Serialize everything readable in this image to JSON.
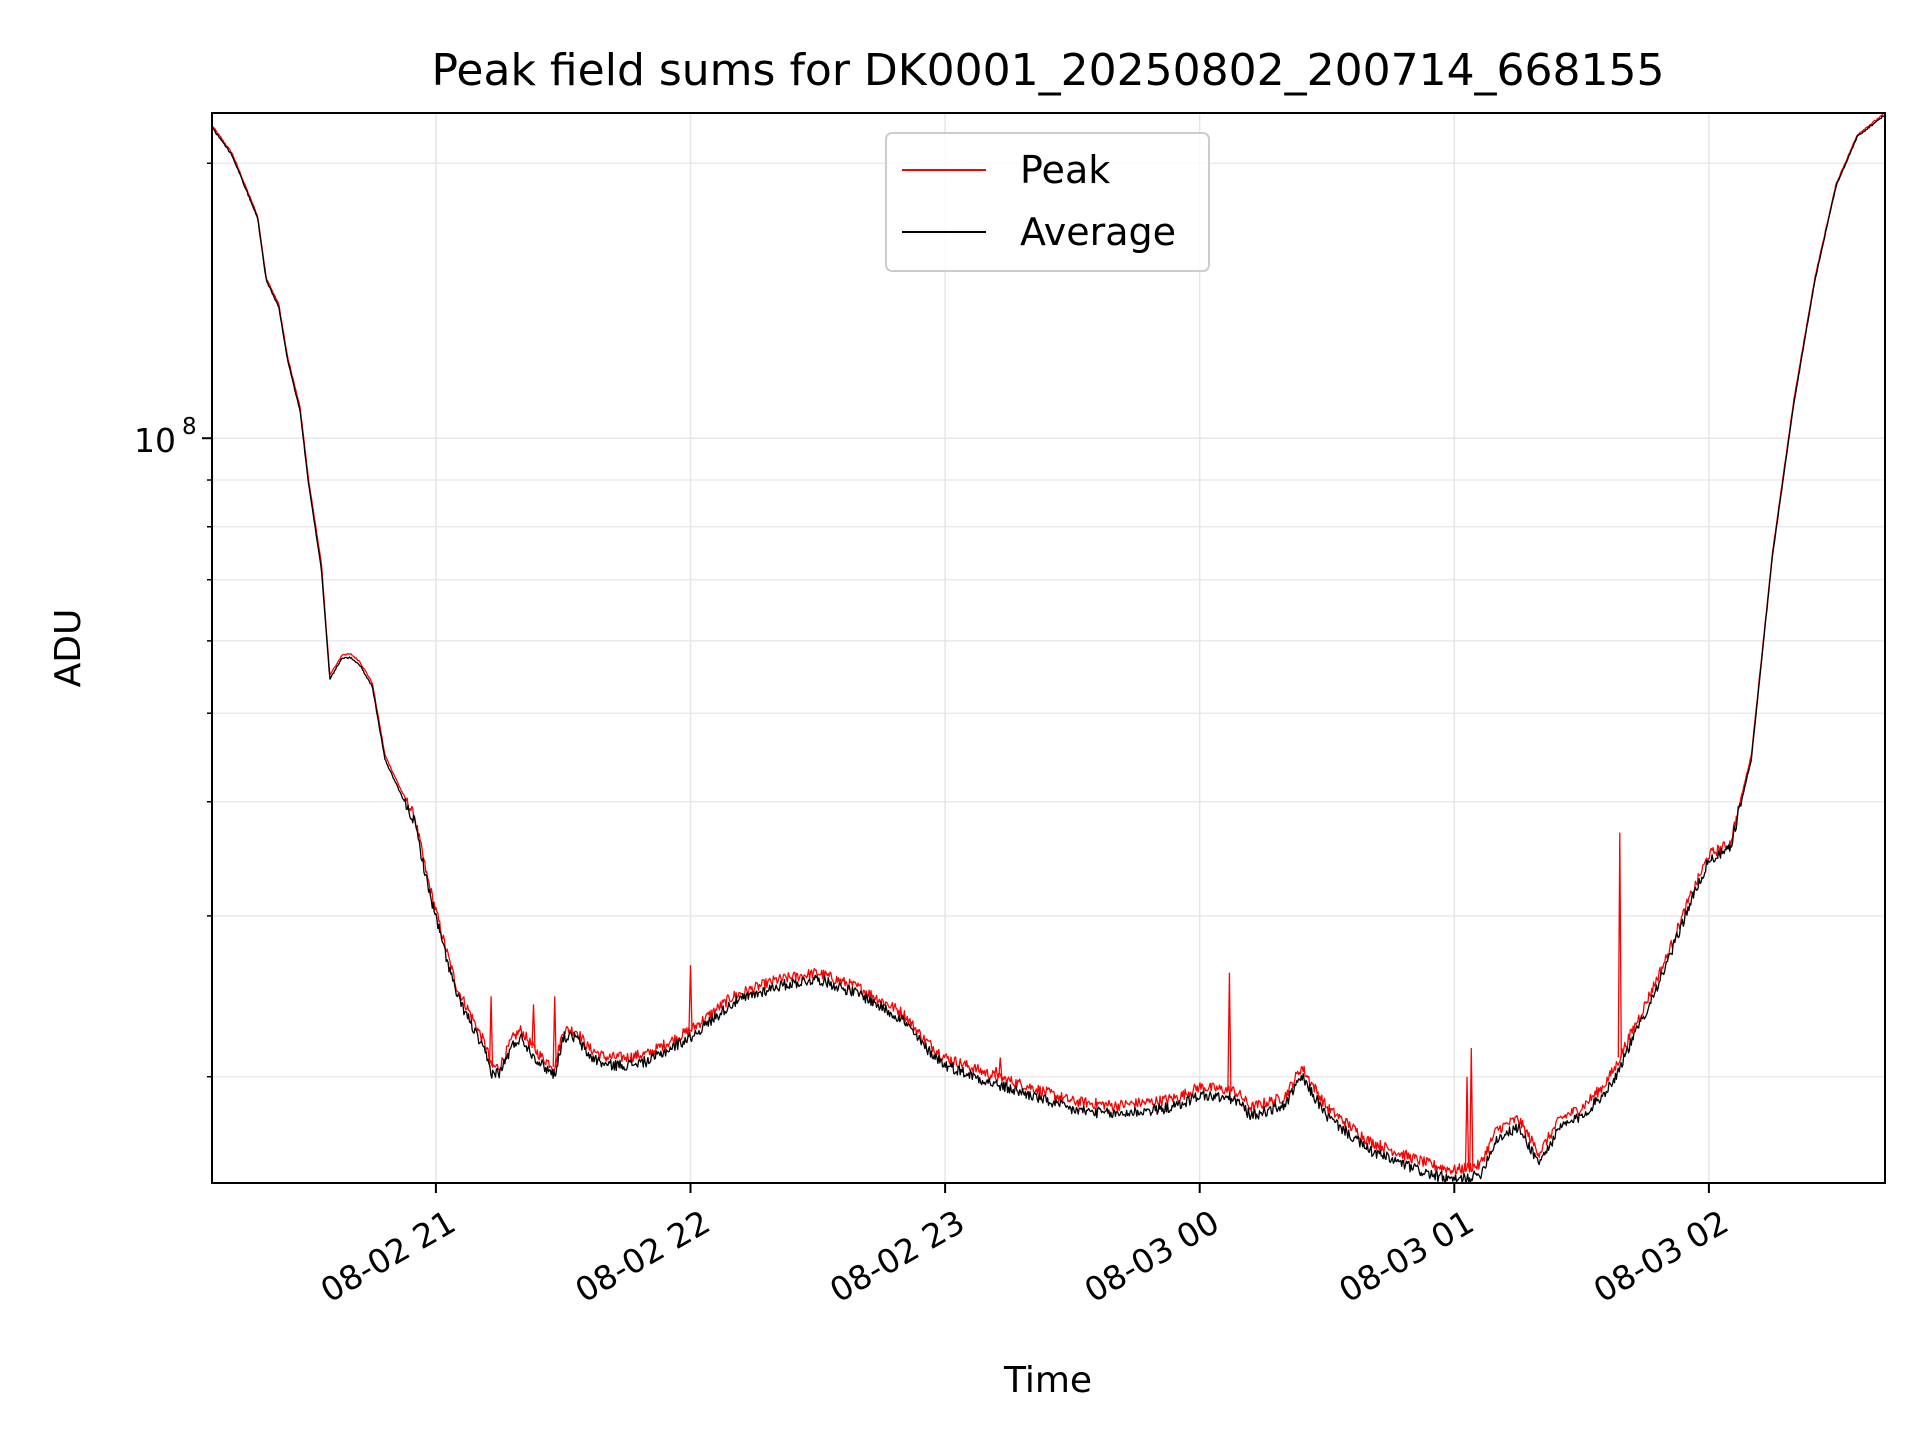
{
  "chart_data": {
    "type": "line",
    "title": "Peak field sums for DK0001_20250802_200714_668155",
    "xlabel": "Time",
    "ylabel": "ADU",
    "yscale": "log",
    "ylim": [
      15300000,
      227000000
    ],
    "xlim": [
      "2025-08-02 20:07:14",
      "2025-08-03 02:41:30"
    ],
    "x_ticks": [
      "2025-08-02 21:00",
      "2025-08-02 22:00",
      "2025-08-02 23:00",
      "2025-08-03 00:00",
      "2025-08-03 01:00",
      "2025-08-03 02:00"
    ],
    "x_tick_labels": [
      "08-02 21",
      "08-02 22",
      "08-02 23",
      "08-03 00",
      "08-03 01",
      "08-03 02"
    ],
    "y_tick_label_main": "10",
    "y_tick_label_exp": "8",
    "y_minor_ticks": [
      20000000,
      30000000,
      40000000,
      50000000,
      60000000,
      70000000,
      80000000,
      90000000,
      200000000
    ],
    "grid": true,
    "legend_position": "top-center",
    "colors": {
      "peak": "#ff0000",
      "average": "#000000",
      "grid": "#e6e6e6"
    },
    "series": [
      {
        "name": "Peak",
        "x": [
          "2025-08-02 20:07:14",
          "2025-08-02 20:12",
          "2025-08-02 20:18",
          "2025-08-02 20:20",
          "2025-08-02 20:23",
          "2025-08-02 20:25",
          "2025-08-02 20:28",
          "2025-08-02 20:30",
          "2025-08-02 20:33",
          "2025-08-02 20:35",
          "2025-08-02 20:38",
          "2025-08-02 20:40",
          "2025-08-02 20:42",
          "2025-08-02 20:45",
          "2025-08-02 20:48",
          "2025-08-02 20:52",
          "2025-08-02 20:55",
          "2025-08-02 20:58",
          "2025-08-02 21:02",
          "2025-08-02 21:05",
          "2025-08-02 21:08",
          "2025-08-02 21:12",
          "2025-08-02 21:13",
          "2025-08-02 21:15",
          "2025-08-02 21:18",
          "2025-08-02 21:20",
          "2025-08-02 21:23",
          "2025-08-02 21:25",
          "2025-08-02 21:28",
          "2025-08-02 21:30",
          "2025-08-02 21:33",
          "2025-08-02 21:36",
          "2025-08-02 21:40",
          "2025-08-02 21:45",
          "2025-08-02 21:50",
          "2025-08-02 22:00",
          "2025-08-02 22:10",
          "2025-08-02 22:20",
          "2025-08-02 22:30",
          "2025-08-02 22:40",
          "2025-08-02 22:50",
          "2025-08-02 22:55",
          "2025-08-02 23:00",
          "2025-08-02 23:12",
          "2025-08-02 23:20",
          "2025-08-02 23:30",
          "2025-08-02 23:40",
          "2025-08-02 23:50",
          "2025-08-02 23:55",
          "2025-08-03 00:00",
          "2025-08-03 00:08",
          "2025-08-03 00:10",
          "2025-08-03 00:12",
          "2025-08-03 00:15",
          "2025-08-03 00:20",
          "2025-08-03 00:24",
          "2025-08-03 00:30",
          "2025-08-03 00:40",
          "2025-08-03 00:50",
          "2025-08-03 00:55",
          "2025-08-03 01:00",
          "2025-08-03 01:03",
          "2025-08-03 01:06",
          "2025-08-03 01:10",
          "2025-08-03 01:15",
          "2025-08-03 01:20",
          "2025-08-03 01:25",
          "2025-08-03 01:30",
          "2025-08-03 01:35",
          "2025-08-03 01:38",
          "2025-08-03 01:40",
          "2025-08-03 01:45",
          "2025-08-03 01:50",
          "2025-08-03 01:55",
          "2025-08-03 02:00",
          "2025-08-03 02:05",
          "2025-08-03 02:10",
          "2025-08-03 02:15",
          "2025-08-03 02:20",
          "2025-08-03 02:25",
          "2025-08-03 02:30",
          "2025-08-03 02:35",
          "2025-08-03 02:41:30"
        ],
        "y": [
          220000000,
          205000000,
          175000000,
          150000000,
          140000000,
          123000000,
          108000000,
          90000000,
          73000000,
          55000000,
          58000000,
          58000000,
          57000000,
          54000000,
          45000000,
          41000000,
          38500000,
          33000000,
          28000000,
          25000000,
          23500000,
          21500000,
          20500000,
          20500000,
          22000000,
          22500000,
          21500000,
          21000000,
          20500000,
          22500000,
          22500000,
          21500000,
          21000000,
          21000000,
          21200000,
          22500000,
          24500000,
          25500000,
          26000000,
          25000000,
          23500000,
          22000000,
          21000000,
          20000000,
          19500000,
          18800000,
          18600000,
          18800000,
          19000000,
          19500000,
          19300000,
          19000000,
          18500000,
          18700000,
          19000000,
          20500000,
          18500000,
          17000000,
          16300000,
          16000000,
          15800000,
          15900000,
          16000000,
          17500000,
          18000000,
          16500000,
          18000000,
          18500000,
          19500000,
          20500000,
          21500000,
          24000000,
          27000000,
          31000000,
          35000000,
          36000000,
          45000000,
          75000000,
          110000000,
          150000000,
          190000000,
          215000000,
          227000000
        ]
      },
      {
        "name": "Average",
        "x": [
          "2025-08-02 20:07:14",
          "2025-08-02 20:12",
          "2025-08-02 20:18",
          "2025-08-02 20:20",
          "2025-08-02 20:23",
          "2025-08-02 20:25",
          "2025-08-02 20:28",
          "2025-08-02 20:30",
          "2025-08-02 20:33",
          "2025-08-02 20:35",
          "2025-08-02 20:38",
          "2025-08-02 20:40",
          "2025-08-02 20:42",
          "2025-08-02 20:45",
          "2025-08-02 20:48",
          "2025-08-02 20:52",
          "2025-08-02 20:55",
          "2025-08-02 20:58",
          "2025-08-02 21:02",
          "2025-08-02 21:05",
          "2025-08-02 21:08",
          "2025-08-02 21:12",
          "2025-08-02 21:13",
          "2025-08-02 21:15",
          "2025-08-02 21:18",
          "2025-08-02 21:20",
          "2025-08-02 21:23",
          "2025-08-02 21:25",
          "2025-08-02 21:28",
          "2025-08-02 21:30",
          "2025-08-02 21:33",
          "2025-08-02 21:36",
          "2025-08-02 21:40",
          "2025-08-02 21:45",
          "2025-08-02 21:50",
          "2025-08-02 22:00",
          "2025-08-02 22:10",
          "2025-08-02 22:20",
          "2025-08-02 22:30",
          "2025-08-02 22:40",
          "2025-08-02 22:50",
          "2025-08-02 22:55",
          "2025-08-02 23:00",
          "2025-08-02 23:12",
          "2025-08-02 23:20",
          "2025-08-02 23:30",
          "2025-08-02 23:40",
          "2025-08-02 23:50",
          "2025-08-02 23:55",
          "2025-08-03 00:00",
          "2025-08-03 00:08",
          "2025-08-03 00:10",
          "2025-08-03 00:12",
          "2025-08-03 00:15",
          "2025-08-03 00:20",
          "2025-08-03 00:24",
          "2025-08-03 00:30",
          "2025-08-03 00:40",
          "2025-08-03 00:50",
          "2025-08-03 00:55",
          "2025-08-03 01:00",
          "2025-08-03 01:03",
          "2025-08-03 01:06",
          "2025-08-03 01:10",
          "2025-08-03 01:15",
          "2025-08-03 01:20",
          "2025-08-03 01:25",
          "2025-08-03 01:30",
          "2025-08-03 01:35",
          "2025-08-03 01:38",
          "2025-08-03 01:40",
          "2025-08-03 01:45",
          "2025-08-03 01:50",
          "2025-08-03 01:55",
          "2025-08-03 02:00",
          "2025-08-03 02:05",
          "2025-08-03 02:10",
          "2025-08-03 02:15",
          "2025-08-03 02:20",
          "2025-08-03 02:25",
          "2025-08-03 02:30",
          "2025-08-03 02:35",
          "2025-08-03 02:41:30"
        ],
        "y": [
          219000000,
          204000000,
          174000000,
          149000000,
          139000000,
          122000000,
          107000000,
          89000000,
          72000000,
          54500000,
          57500000,
          57500000,
          56500000,
          53500000,
          44500000,
          40500000,
          38000000,
          32500000,
          27500000,
          24500000,
          23000000,
          21000000,
          20200000,
          20200000,
          21600000,
          22100000,
          21100000,
          20600000,
          20100000,
          22100000,
          22100000,
          21100000,
          20600000,
          20600000,
          20800000,
          22100000,
          24100000,
          25100000,
          25600000,
          24600000,
          23100000,
          21600000,
          20600000,
          19600000,
          19100000,
          18400000,
          18200000,
          18400000,
          18600000,
          19100000,
          18900000,
          18600000,
          18100000,
          18300000,
          18600000,
          20000000,
          18100000,
          16600000,
          15900000,
          15600000,
          15400000,
          15500000,
          15600000,
          17100000,
          17600000,
          16100000,
          17600000,
          18100000,
          19100000,
          20000000,
          21000000,
          23500000,
          26500000,
          30500000,
          34500000,
          35500000,
          44500000,
          74500000,
          109000000,
          149000000,
          189000000,
          214000000,
          226000000
        ]
      }
    ],
    "peak_spikes": [
      {
        "x": "2025-08-02 21:13",
        "y": 24500000
      },
      {
        "x": "2025-08-02 21:23",
        "y": 24000000
      },
      {
        "x": "2025-08-02 21:28",
        "y": 24500000
      },
      {
        "x": "2025-08-02 22:00",
        "y": 26500000
      },
      {
        "x": "2025-08-02 23:12",
        "y": 20500000
      },
      {
        "x": "2025-08-02 23:13",
        "y": 21000000
      },
      {
        "x": "2025-08-03 00:07",
        "y": 26000000
      },
      {
        "x": "2025-08-03 01:03",
        "y": 20000000
      },
      {
        "x": "2025-08-03 01:04",
        "y": 21500000
      },
      {
        "x": "2025-08-03 01:39",
        "y": 37000000
      }
    ]
  }
}
